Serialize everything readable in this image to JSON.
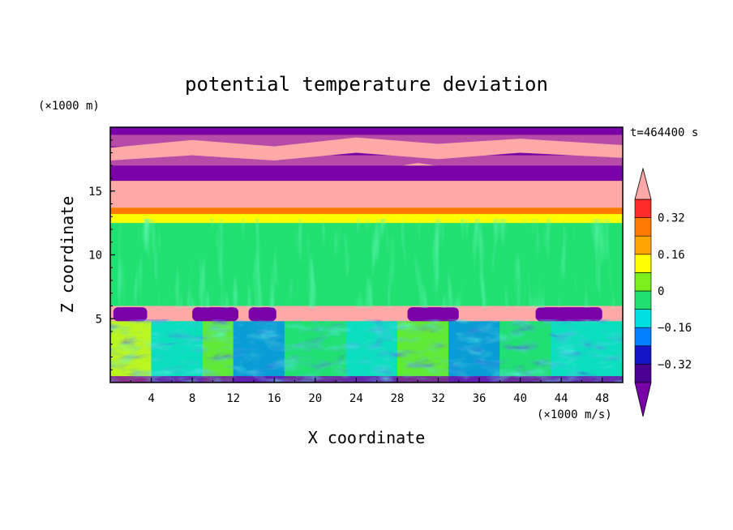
{
  "chart_data": {
    "type": "heatmap",
    "title": "potential temperature deviation",
    "xlabel": "X coordinate",
    "ylabel": "Z coordinate",
    "x_unit": "(×1000 m/s)",
    "y_unit": "(×1000 m)",
    "time_label": "t=464400 s",
    "xlim": [
      0,
      50
    ],
    "ylim": [
      0,
      20
    ],
    "x_ticks": [
      "4",
      "8",
      "12",
      "16",
      "20",
      "24",
      "28",
      "32",
      "36",
      "40",
      "44",
      "48"
    ],
    "y_ticks": [
      "5",
      "10",
      "15"
    ],
    "colorbar": {
      "levels": [
        -0.4,
        -0.32,
        -0.24,
        -0.16,
        -0.08,
        0,
        0.08,
        0.16,
        0.24,
        0.32,
        0.4
      ],
      "tick_labels": [
        "0.32",
        "0.16",
        "0",
        "−0.16",
        "−0.32"
      ],
      "colors": [
        "#ffa8a8",
        "#ff2a2a",
        "#ff7a00",
        "#ffa500",
        "#ffff00",
        "#7cee1c",
        "#20e070",
        "#00dede",
        "#0080ff",
        "#1414c8",
        "#4a0090",
        "#7a00a8"
      ]
    },
    "layers": [
      {
        "z_range": [
          0,
          4.8
        ],
        "pattern": "turbulent boundary layer"
      },
      {
        "z_range": [
          4.8,
          6
        ],
        "pattern": "salmon band with purple caps"
      },
      {
        "z_range": [
          6,
          12.5
        ],
        "pattern": "near-zero green field"
      },
      {
        "z_range": [
          12.5,
          15.8
        ],
        "pattern": "orange/salmon inversion band"
      },
      {
        "z_range": [
          15.8,
          20
        ],
        "pattern": "alternating salmon and purple layers"
      }
    ]
  }
}
